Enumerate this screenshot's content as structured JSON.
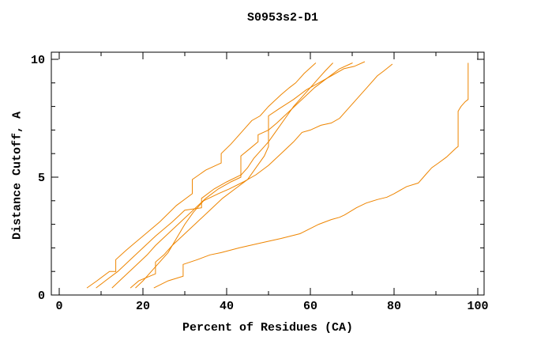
{
  "page": {
    "background": "#ffffff"
  },
  "chart_data": {
    "type": "line",
    "title": "S0953s2-D1",
    "xlabel": "Percent of Residues (CA)",
    "ylabel": "Distance Cutoff, A",
    "xlim": [
      -1.9,
      101.5
    ],
    "ylim": [
      0,
      10.3
    ],
    "x_major_ticks": [
      0,
      20,
      40,
      60,
      80,
      100
    ],
    "x_minor_ticks": [
      10,
      30,
      50,
      70,
      90
    ],
    "y_major_ticks": [
      0,
      5,
      10
    ],
    "y_minor_ticks": [
      1,
      2,
      3,
      4,
      6,
      7,
      8,
      9
    ],
    "grid": false,
    "legend": "none",
    "line_color": "#EE8500",
    "frame_color": "#000000",
    "series": [
      {
        "name": "curve-1",
        "points": [
          [
            6.6,
            0.3
          ],
          [
            9,
            0.6
          ],
          [
            12,
            1.0
          ],
          [
            13.5,
            1.0
          ],
          [
            13.5,
            1.5
          ],
          [
            16,
            1.9
          ],
          [
            18,
            2.2
          ],
          [
            20,
            2.5
          ],
          [
            24,
            3.1
          ],
          [
            28,
            3.8
          ],
          [
            31.8,
            4.3
          ],
          [
            31.8,
            4.9
          ],
          [
            35,
            5.3
          ],
          [
            38.7,
            5.6
          ],
          [
            38.7,
            6.0
          ],
          [
            41,
            6.4
          ],
          [
            43,
            6.8
          ],
          [
            44,
            7.0
          ],
          [
            46,
            7.4
          ],
          [
            48,
            7.6
          ],
          [
            50,
            8.0
          ],
          [
            53,
            8.5
          ],
          [
            55,
            8.8
          ],
          [
            56.5,
            9.0
          ],
          [
            58.5,
            9.4
          ],
          [
            61.3,
            9.85
          ]
        ]
      },
      {
        "name": "curve-2",
        "points": [
          [
            8.8,
            0.3
          ],
          [
            11,
            0.6
          ],
          [
            14,
            1.0
          ],
          [
            17,
            1.5
          ],
          [
            20,
            2.0
          ],
          [
            23,
            2.5
          ],
          [
            27,
            3.1
          ],
          [
            30,
            3.6
          ],
          [
            34,
            3.7
          ],
          [
            34,
            4.1
          ],
          [
            37,
            4.5
          ],
          [
            40,
            4.8
          ],
          [
            43.5,
            5.1
          ],
          [
            45,
            5.4
          ],
          [
            46.5,
            5.8
          ],
          [
            48,
            6.1
          ],
          [
            50,
            6.5
          ],
          [
            52,
            7.0
          ],
          [
            54,
            7.5
          ],
          [
            56,
            8.0
          ],
          [
            58,
            8.4
          ],
          [
            60,
            8.8
          ],
          [
            62,
            9.2
          ],
          [
            63.5,
            9.5
          ],
          [
            65.4,
            9.85
          ]
        ]
      },
      {
        "name": "curve-3",
        "points": [
          [
            12.6,
            0.3
          ],
          [
            15,
            0.7
          ],
          [
            18,
            1.2
          ],
          [
            21,
            1.7
          ],
          [
            23,
            2.1
          ],
          [
            26,
            2.6
          ],
          [
            29,
            3.1
          ],
          [
            32,
            3.6
          ],
          [
            35,
            4.1
          ],
          [
            38,
            4.5
          ],
          [
            41,
            4.8
          ],
          [
            43.4,
            5.0
          ],
          [
            43.4,
            5.9
          ],
          [
            45.5,
            6.2
          ],
          [
            47.5,
            6.5
          ],
          [
            47.5,
            6.8
          ],
          [
            50,
            7.0
          ],
          [
            52,
            7.3
          ],
          [
            55,
            7.8
          ],
          [
            58,
            8.3
          ],
          [
            61,
            8.8
          ],
          [
            64,
            9.2
          ],
          [
            67,
            9.6
          ],
          [
            70.1,
            9.85
          ]
        ]
      },
      {
        "name": "curve-4",
        "points": [
          [
            17,
            0.3
          ],
          [
            19,
            0.6
          ],
          [
            23,
            0.9
          ],
          [
            23,
            1.4
          ],
          [
            25,
            1.7
          ],
          [
            27,
            2.1
          ],
          [
            30,
            2.6
          ],
          [
            33,
            3.1
          ],
          [
            36,
            3.6
          ],
          [
            39,
            4.1
          ],
          [
            42,
            4.5
          ],
          [
            45,
            4.9
          ],
          [
            47,
            5.4
          ],
          [
            49,
            5.9
          ],
          [
            50,
            6.3
          ],
          [
            50,
            7.6
          ],
          [
            52.5,
            7.9
          ],
          [
            56,
            8.3
          ],
          [
            59,
            8.7
          ],
          [
            62,
            9.0
          ],
          [
            65,
            9.3
          ],
          [
            68,
            9.6
          ],
          [
            70.5,
            9.7
          ],
          [
            73,
            9.9
          ]
        ]
      },
      {
        "name": "curve-5",
        "points": [
          [
            18.2,
            0.3
          ],
          [
            20,
            0.6
          ],
          [
            22,
            1.0
          ],
          [
            24,
            1.4
          ],
          [
            26,
            1.8
          ],
          [
            28,
            2.4
          ],
          [
            30,
            3.0
          ],
          [
            32,
            3.5
          ],
          [
            34.5,
            4.0
          ],
          [
            38,
            4.3
          ],
          [
            40.6,
            4.5
          ],
          [
            44,
            4.8
          ],
          [
            47,
            5.1
          ],
          [
            50,
            5.5
          ],
          [
            53,
            6.0
          ],
          [
            56,
            6.5
          ],
          [
            58,
            6.9
          ],
          [
            60,
            7.0
          ],
          [
            62.5,
            7.2
          ],
          [
            65,
            7.3
          ],
          [
            67,
            7.5
          ],
          [
            69,
            7.9
          ],
          [
            71,
            8.3
          ],
          [
            73.5,
            8.8
          ],
          [
            76,
            9.3
          ],
          [
            77.5,
            9.5
          ],
          [
            79.6,
            9.8
          ]
        ]
      },
      {
        "name": "curve-6",
        "points": [
          [
            22.6,
            0.3
          ],
          [
            26,
            0.6
          ],
          [
            29.6,
            0.8
          ],
          [
            29.6,
            1.3
          ],
          [
            33,
            1.5
          ],
          [
            36,
            1.7
          ],
          [
            38.7,
            1.8
          ],
          [
            43,
            2.0
          ],
          [
            48,
            2.2
          ],
          [
            53,
            2.4
          ],
          [
            57.5,
            2.6
          ],
          [
            62,
            3.0
          ],
          [
            65,
            3.2
          ],
          [
            67,
            3.3
          ],
          [
            68.2,
            3.4
          ],
          [
            71,
            3.7
          ],
          [
            73.3,
            3.9
          ],
          [
            76,
            4.05
          ],
          [
            78.3,
            4.15
          ],
          [
            80,
            4.3
          ],
          [
            83,
            4.6
          ],
          [
            85.8,
            4.75
          ],
          [
            87.5,
            5.1
          ],
          [
            89,
            5.4
          ],
          [
            90.6,
            5.6
          ],
          [
            92.5,
            5.85
          ],
          [
            94,
            6.1
          ],
          [
            94.9,
            6.25
          ],
          [
            95.3,
            6.3
          ],
          [
            95.3,
            7.8
          ],
          [
            96,
            8.0
          ],
          [
            97,
            8.2
          ],
          [
            97.7,
            8.3
          ],
          [
            97.7,
            9.85
          ]
        ]
      }
    ]
  }
}
